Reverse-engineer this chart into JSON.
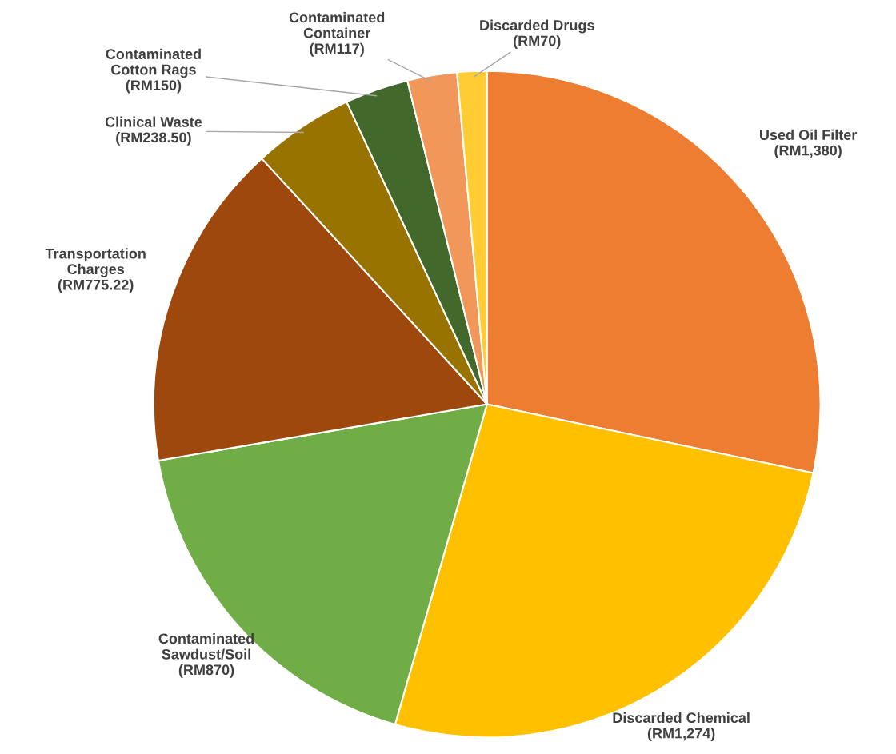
{
  "chart_data": {
    "type": "pie",
    "categories": [
      "Used Oil Filter",
      "Discarded Chemical",
      "Contaminated\nSawdust/Soil",
      "Transportation\nCharges",
      "Clinical Waste",
      "Contaminated\nCotton Rags",
      "Contaminated\nContainer",
      "Discarded Drugs"
    ],
    "values": [
      1380,
      1274,
      870,
      775.22,
      238.5,
      150,
      117,
      70
    ],
    "value_labels": [
      "(RM1,380)",
      "(RM1,274)",
      "(RM870)",
      "(RM775.22)",
      "(RM238.50)",
      "(RM150)",
      "(RM117)",
      "(RM70)"
    ],
    "colors": [
      "#ed7d31",
      "#ffc000",
      "#70ad47",
      "#9e480e",
      "#997300",
      "#43682b",
      "#f1975a",
      "#ffcd33"
    ]
  }
}
